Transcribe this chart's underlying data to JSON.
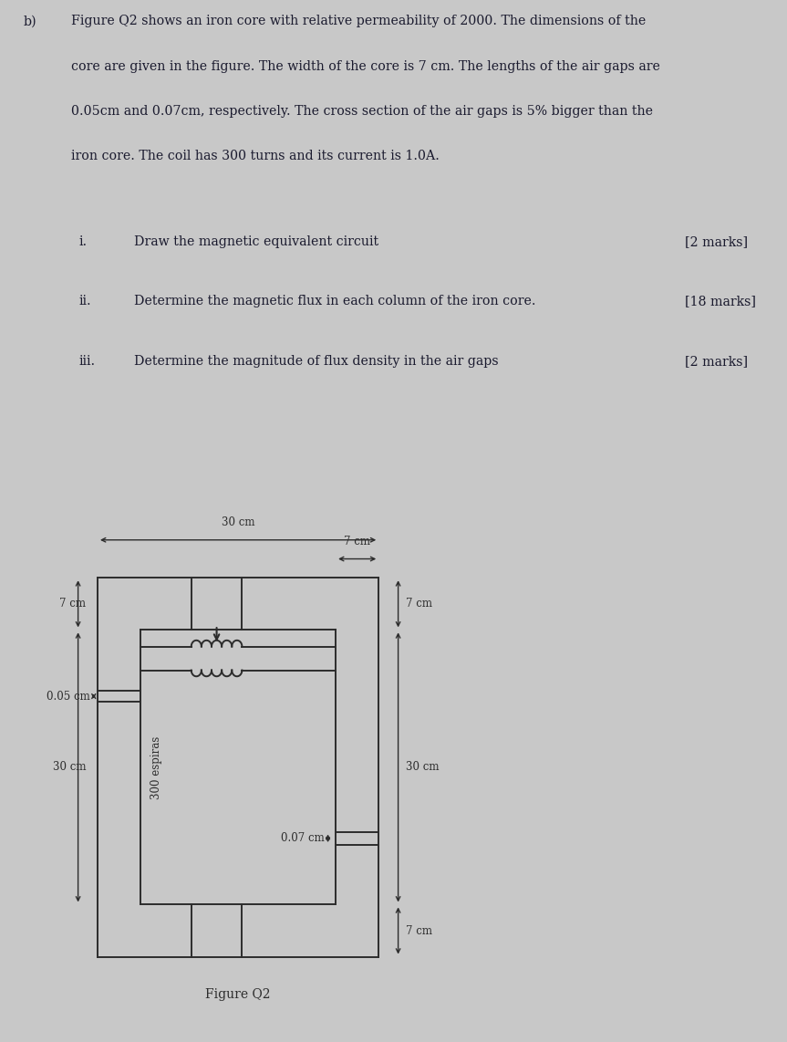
{
  "bg_color": "#c8c8c8",
  "text_color": "#1a1a2e",
  "line_color": "#2c2c2c",
  "line_width": 1.4,
  "title_b": "b)",
  "title_main": "Figure Q2 shows an iron core with relative permeability of 2000. The dimensions of the",
  "title_line2": "core are given in the figure. The width of the core is 7 cm. The lengths of the air gaps are",
  "title_line3": "0.05cm and 0.07cm, respectively. The cross section of the air gaps is 5% bigger than the",
  "title_line4": "iron core. The coil has 300 turns and its current is 1.0A.",
  "q_i_label": "i.",
  "q_i_text": "Draw the magnetic equivalent circuit",
  "q_i_marks": "[2 marks]",
  "q_ii_label": "ii.",
  "q_ii_text": "Determine the magnetic flux in each column of the iron core.",
  "q_ii_marks": "[18 marks]",
  "q_iii_label": "iii.",
  "q_iii_text": "Determine the magnitude of flux density in the air gaps",
  "q_iii_marks": "[2 marks]",
  "figure_label": "Figure Q2",
  "gap1_label": "0.05 cm",
  "gap2_label": "0.07 cm",
  "coil_label": "300 espiras",
  "dim_7cm_top": "7 cm",
  "dim_30cm_top": "30 cm",
  "dim_7cm_left": "7 cm",
  "dim_30cm_left": "30 cm",
  "dim_7cm_right_top": "7 cm",
  "dim_30cm_right": "30 cm",
  "dim_7cm_right_bot": "7 cm"
}
